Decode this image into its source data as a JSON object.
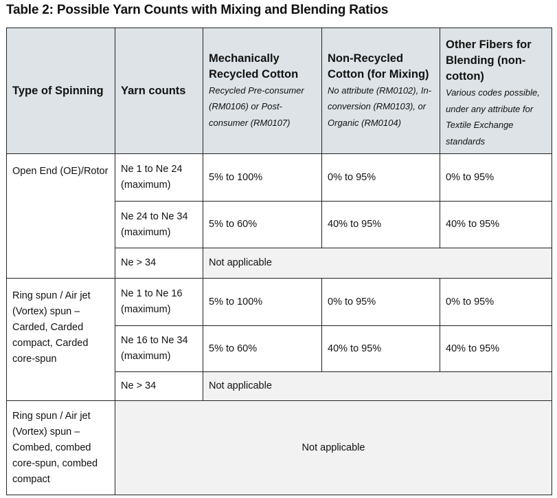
{
  "title": "Table 2: Possible Yarn Counts with Mixing and Blending Ratios",
  "headers": [
    {
      "label": "Type of Spinning"
    },
    {
      "label": "Yarn counts"
    },
    {
      "label": "Mechanically Recycled Cotton",
      "sub": "Recycled Pre-consumer (RM0106) or Post-consumer (RM0107)"
    },
    {
      "label": "Non-Recycled Cotton (for Mixing)",
      "sub": "No attribute (RM0102), In-conversion (RM0103), or Organic (RM0104)"
    },
    {
      "label": "Other Fibers for Blending (non-cotton)",
      "sub": "Various codes possible, under any attribute for Textile Exchange standards"
    }
  ],
  "groups": [
    {
      "type": "Open End (OE)/Rotor",
      "rows": [
        {
          "count": "Ne 1 to Ne 24 (maximum)",
          "values": [
            "5% to 100%",
            "0% to 95%",
            "0% to 95%"
          ]
        },
        {
          "count": "Ne 24 to Ne 34 (maximum)",
          "values": [
            "5% to 60%",
            "40% to 95%",
            "40% to 95%"
          ]
        },
        {
          "count": "Ne > 34",
          "na": "Not applicable"
        }
      ]
    },
    {
      "type": "Ring spun / Air jet (Vortex) spun – Carded, Carded compact, Carded core-spun",
      "rows": [
        {
          "count": "Ne 1 to Ne 16 (maximum)",
          "values": [
            "5% to 100%",
            "0% to 95%",
            "0% to 95%"
          ]
        },
        {
          "count": "Ne 16 to Ne 34 (maximum)",
          "values": [
            "5% to 60%",
            "40% to 95%",
            "40% to 95%"
          ]
        },
        {
          "count": "Ne > 34",
          "na": "Not applicable"
        }
      ]
    },
    {
      "type": "Ring spun / Air jet (Vortex) spun – Combed, combed core-spun, combed compact",
      "na": "Not applicable"
    }
  ]
}
